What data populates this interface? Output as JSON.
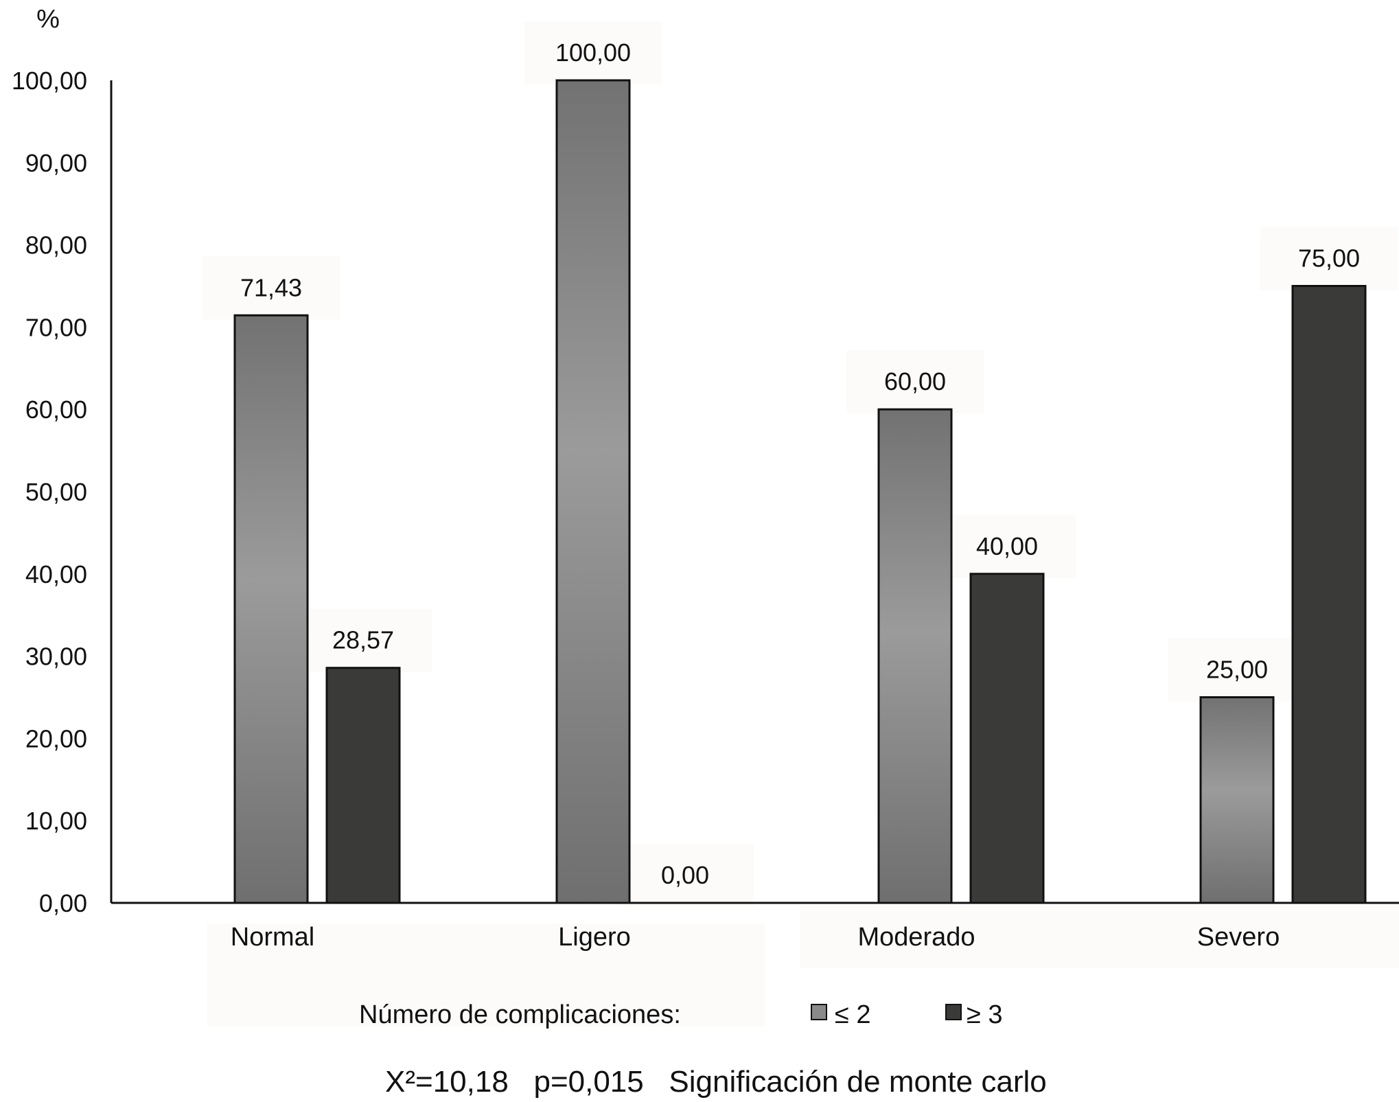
{
  "chart_data": {
    "type": "bar",
    "ylabel": "%",
    "ylim": [
      0,
      100
    ],
    "yticks": [
      "0,00",
      "10,00",
      "20,00",
      "30,00",
      "40,00",
      "50,00",
      "60,00",
      "70,00",
      "80,00",
      "90,00",
      "100,00"
    ],
    "categories": [
      "Normal",
      "Ligero",
      "Moderado",
      "Severo"
    ],
    "series": [
      {
        "name": "≤ 2",
        "values": [
          71.43,
          100.0,
          60.0,
          25.0
        ],
        "labels": [
          "71,43",
          "100,00",
          "60,00",
          "25,00"
        ],
        "color": "#8a8a8a"
      },
      {
        "name": "≥ 3",
        "values": [
          28.57,
          0.0,
          40.0,
          75.0
        ],
        "labels": [
          "28,57",
          "0,00",
          "40,00",
          "75,00"
        ],
        "color": "#3a3a38"
      }
    ],
    "legend": {
      "title": "Número de complicaciones:",
      "placement": "bottom"
    },
    "grid": false
  },
  "footer_note": "X²=10,18   p=0,015   Significación de monte carlo"
}
